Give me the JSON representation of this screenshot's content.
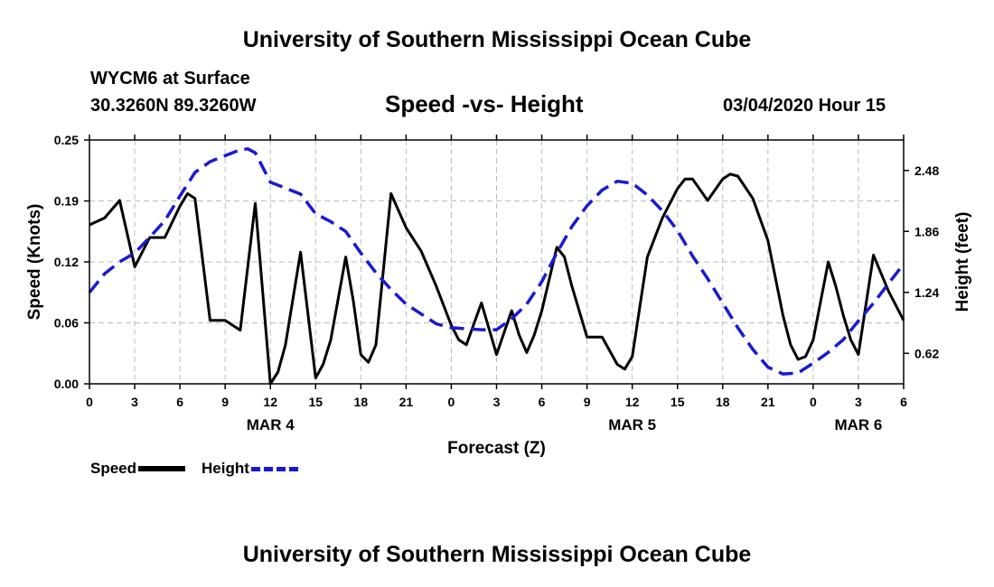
{
  "page": {
    "title_top": "University of Southern Mississippi Ocean Cube",
    "title_bottom": "University of Southern Mississippi Ocean Cube",
    "station": "WYCM6 at Surface",
    "coords": "30.3260N 89.3260W",
    "datetime": "03/04/2020 Hour 15"
  },
  "legend": {
    "speed": "Speed",
    "height": "Height"
  },
  "chart_data": {
    "type": "line",
    "title": "Speed -vs- Height",
    "xlabel": "Forecast (Z)",
    "ylabel": "Speed (Knots)",
    "y2label": "Height (feet)",
    "xlim": [
      0,
      54
    ],
    "ylim": [
      0,
      0.25
    ],
    "y2lim": [
      0.31,
      2.79
    ],
    "grid": true,
    "legend_position": "bottom-left",
    "x_ticks": [
      {
        "x": 0,
        "label": "0"
      },
      {
        "x": 3,
        "label": "3"
      },
      {
        "x": 6,
        "label": "6"
      },
      {
        "x": 9,
        "label": "9"
      },
      {
        "x": 12,
        "label": "12"
      },
      {
        "x": 15,
        "label": "15"
      },
      {
        "x": 18,
        "label": "18"
      },
      {
        "x": 21,
        "label": "21"
      },
      {
        "x": 24,
        "label": "0"
      },
      {
        "x": 27,
        "label": "3"
      },
      {
        "x": 30,
        "label": "6"
      },
      {
        "x": 33,
        "label": "9"
      },
      {
        "x": 36,
        "label": "12"
      },
      {
        "x": 39,
        "label": "15"
      },
      {
        "x": 42,
        "label": "18"
      },
      {
        "x": 45,
        "label": "21"
      },
      {
        "x": 48,
        "label": "0"
      },
      {
        "x": 51,
        "label": "3"
      },
      {
        "x": 54,
        "label": "6"
      }
    ],
    "date_labels": [
      {
        "x": 12,
        "label": "MAR 4"
      },
      {
        "x": 36,
        "label": "MAR 5"
      },
      {
        "x": 51,
        "label": "MAR 6"
      }
    ],
    "y_ticks": [
      {
        "v": 0.0,
        "label": "0.00"
      },
      {
        "v": 0.0625,
        "label": "0.06"
      },
      {
        "v": 0.125,
        "label": "0.12"
      },
      {
        "v": 0.1875,
        "label": "0.19"
      },
      {
        "v": 0.25,
        "label": "0.25"
      }
    ],
    "y2_ticks": [
      {
        "v": 0.62,
        "label": "0.62"
      },
      {
        "v": 1.24,
        "label": "1.24"
      },
      {
        "v": 1.86,
        "label": "1.86"
      },
      {
        "v": 2.48,
        "label": "2.48"
      }
    ],
    "series": [
      {
        "name": "Speed",
        "axis": "left",
        "color": "#000000",
        "dash": "solid",
        "points": [
          [
            0,
            0.163
          ],
          [
            1,
            0.17
          ],
          [
            2,
            0.188
          ],
          [
            3,
            0.12
          ],
          [
            4,
            0.15
          ],
          [
            5,
            0.15
          ],
          [
            6,
            0.182
          ],
          [
            6.5,
            0.195
          ],
          [
            7,
            0.19
          ],
          [
            8,
            0.065
          ],
          [
            9,
            0.065
          ],
          [
            10,
            0.055
          ],
          [
            11,
            0.185
          ],
          [
            12,
            0.0
          ],
          [
            12.5,
            0.012
          ],
          [
            13,
            0.04
          ],
          [
            14,
            0.135
          ],
          [
            15,
            0.006
          ],
          [
            15.5,
            0.02
          ],
          [
            16,
            0.045
          ],
          [
            17,
            0.13
          ],
          [
            17.5,
            0.085
          ],
          [
            18,
            0.03
          ],
          [
            18.5,
            0.022
          ],
          [
            19,
            0.04
          ],
          [
            20,
            0.195
          ],
          [
            21,
            0.16
          ],
          [
            22,
            0.136
          ],
          [
            23,
            0.1
          ],
          [
            24,
            0.06
          ],
          [
            24.5,
            0.045
          ],
          [
            25,
            0.04
          ],
          [
            26,
            0.083
          ],
          [
            27,
            0.03
          ],
          [
            28,
            0.075
          ],
          [
            28.5,
            0.05
          ],
          [
            29,
            0.032
          ],
          [
            29.5,
            0.05
          ],
          [
            30,
            0.075
          ],
          [
            31,
            0.14
          ],
          [
            31.5,
            0.13
          ],
          [
            32,
            0.1
          ],
          [
            33,
            0.048
          ],
          [
            34,
            0.048
          ],
          [
            35,
            0.02
          ],
          [
            35.5,
            0.015
          ],
          [
            36,
            0.028
          ],
          [
            37,
            0.13
          ],
          [
            38,
            0.17
          ],
          [
            39,
            0.2
          ],
          [
            39.5,
            0.21
          ],
          [
            40,
            0.21
          ],
          [
            41,
            0.188
          ],
          [
            42,
            0.21
          ],
          [
            42.5,
            0.215
          ],
          [
            43,
            0.213
          ],
          [
            44,
            0.19
          ],
          [
            45,
            0.147
          ],
          [
            46,
            0.07
          ],
          [
            46.5,
            0.04
          ],
          [
            47,
            0.025
          ],
          [
            47.5,
            0.028
          ],
          [
            48,
            0.045
          ],
          [
            49,
            0.125
          ],
          [
            49.5,
            0.1
          ],
          [
            50,
            0.07
          ],
          [
            50.5,
            0.045
          ],
          [
            51,
            0.03
          ],
          [
            52,
            0.132
          ],
          [
            53,
            0.095
          ],
          [
            54,
            0.065
          ]
        ]
      },
      {
        "name": "Height",
        "axis": "right",
        "color": "#1a1ad0",
        "dash": "dashed",
        "points": [
          [
            0,
            1.24
          ],
          [
            1,
            1.43
          ],
          [
            2,
            1.55
          ],
          [
            3,
            1.64
          ],
          [
            4,
            1.8
          ],
          [
            5,
            1.97
          ],
          [
            6,
            2.22
          ],
          [
            7,
            2.46
          ],
          [
            8,
            2.57
          ],
          [
            9,
            2.63
          ],
          [
            10,
            2.69
          ],
          [
            10.5,
            2.7
          ],
          [
            11,
            2.66
          ],
          [
            12,
            2.36
          ],
          [
            13,
            2.3
          ],
          [
            14,
            2.24
          ],
          [
            15,
            2.04
          ],
          [
            16,
            1.96
          ],
          [
            17,
            1.86
          ],
          [
            18,
            1.64
          ],
          [
            19,
            1.44
          ],
          [
            20,
            1.27
          ],
          [
            21,
            1.12
          ],
          [
            22,
            1.02
          ],
          [
            23,
            0.92
          ],
          [
            24,
            0.88
          ],
          [
            25,
            0.87
          ],
          [
            26,
            0.86
          ],
          [
            27,
            0.86
          ],
          [
            28,
            0.97
          ],
          [
            29,
            1.12
          ],
          [
            30,
            1.35
          ],
          [
            31,
            1.64
          ],
          [
            32,
            1.91
          ],
          [
            33,
            2.12
          ],
          [
            34,
            2.28
          ],
          [
            35,
            2.37
          ],
          [
            36,
            2.35
          ],
          [
            37,
            2.23
          ],
          [
            38,
            2.07
          ],
          [
            39,
            1.87
          ],
          [
            40,
            1.61
          ],
          [
            41,
            1.38
          ],
          [
            42,
            1.13
          ],
          [
            43,
            0.88
          ],
          [
            44,
            0.66
          ],
          [
            45,
            0.48
          ],
          [
            46,
            0.41
          ],
          [
            47,
            0.42
          ],
          [
            48,
            0.52
          ],
          [
            49,
            0.63
          ],
          [
            50,
            0.76
          ],
          [
            51,
            0.95
          ],
          [
            52,
            1.13
          ],
          [
            53,
            1.33
          ],
          [
            54,
            1.53
          ]
        ]
      }
    ]
  }
}
